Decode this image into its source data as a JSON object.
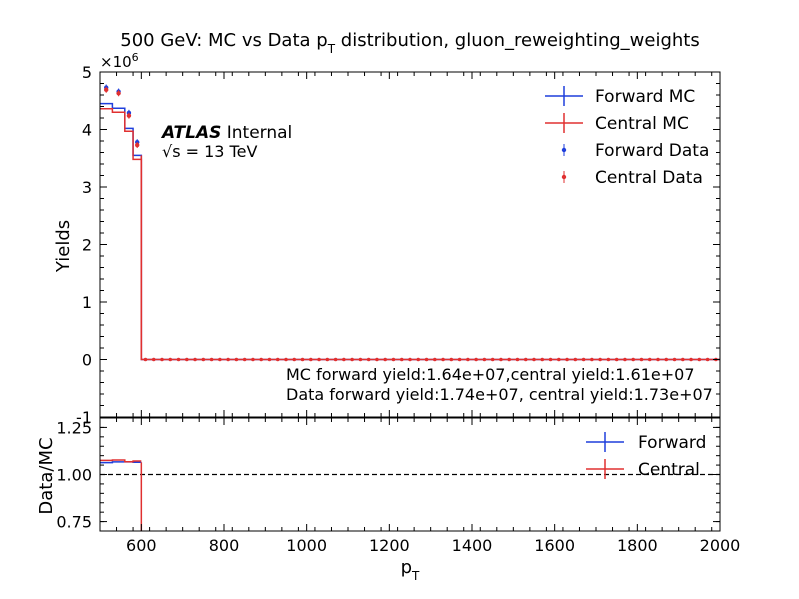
{
  "chart_data": [
    {
      "type": "line",
      "panel": "main",
      "title": {
        "prefix": "500 GeV: MC vs Data p",
        "sub": "T",
        "suffix": " distribution, gluon_reweighting_weights"
      },
      "ylabel": "Yields",
      "xlim": [
        500,
        2000
      ],
      "ylim": [
        -1000000,
        5000000
      ],
      "y_exponent_label": {
        "base": "×10",
        "exp": "6"
      },
      "yticks": [
        -1,
        0,
        1,
        2,
        3,
        4,
        5
      ],
      "ytick_scale": 1000000,
      "bin_edges": [
        500,
        530,
        560,
        580,
        600,
        2000
      ],
      "series": [
        {
          "name": "Forward MC",
          "style": "step",
          "color": "#1f3fdc",
          "values": [
            4450000,
            4370000,
            4020000,
            3550000,
            0
          ]
        },
        {
          "name": "Central MC",
          "style": "step",
          "color": "#e03030",
          "values": [
            4360000,
            4300000,
            3970000,
            3480000,
            0
          ]
        }
      ],
      "data_series": [
        {
          "name": "Forward Data",
          "color": "#1f3fdc",
          "x": [
            515,
            545,
            570,
            590
          ],
          "y": [
            4730000,
            4660000,
            4290000,
            3780000
          ]
        },
        {
          "name": "Central Data",
          "color": "#e03030",
          "x": [
            515,
            545,
            570,
            590
          ],
          "y": [
            4690000,
            4630000,
            4240000,
            3730000
          ]
        }
      ],
      "zero_markers": {
        "x_start": 610,
        "x_end": 2000,
        "step": 20,
        "y": 0
      },
      "legend": [
        "Forward MC",
        "Central MC",
        "Forward Data",
        "Central Data"
      ],
      "legend_position": "top-right",
      "atlas_label": {
        "bold": "ATLAS",
        "rest": " Internal"
      },
      "energy_label": {
        "sqrt": "√s",
        "rest": " = 13 TeV"
      },
      "annotations": [
        "MC forward yield:1.64e+07,central yield:1.61e+07",
        "Data forward yield:1.74e+07, central yield:1.73e+07"
      ]
    },
    {
      "type": "line",
      "panel": "ratio",
      "xlabel": {
        "main": "p",
        "sub": "T"
      },
      "ylabel": "Data/MC",
      "xlim": [
        500,
        2000
      ],
      "ylim": [
        0.7,
        1.3
      ],
      "yticks": [
        0.75,
        1.0,
        1.25
      ],
      "ytick_labels": [
        "0.75",
        "1.00",
        "1.25"
      ],
      "xticks": [
        600,
        800,
        1000,
        1200,
        1400,
        1600,
        1800,
        2000
      ],
      "xtick_labels": [
        "600",
        "800",
        "1000",
        "1200",
        "1400",
        "1600",
        "1800",
        "2000"
      ],
      "reference_line": 1.0,
      "bin_edges": [
        500,
        530,
        560,
        580,
        600
      ],
      "series": [
        {
          "name": "Forward",
          "color": "#1f3fdc",
          "values": [
            1.063,
            1.067,
            1.067,
            1.065
          ]
        },
        {
          "name": "Central",
          "color": "#e03030",
          "values": [
            1.075,
            1.077,
            1.068,
            1.072
          ]
        }
      ],
      "drop_line_x": 600,
      "legend": [
        "Forward",
        "Central"
      ],
      "legend_position": "top-right"
    }
  ]
}
